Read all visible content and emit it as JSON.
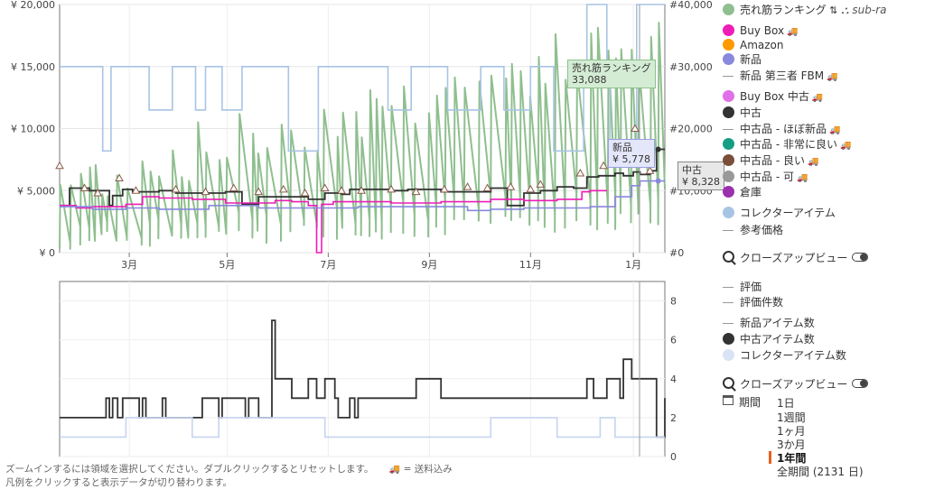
{
  "chart_data": [
    {
      "type": "line",
      "panel": "price",
      "y_left_ticks": [
        "¥ 0",
        "¥ 5,000",
        "¥ 10,000",
        "¥ 15,000",
        "¥ 20,000"
      ],
      "y_right_ticks": [
        "#0",
        "#10,000",
        "#20,000",
        "#30,000",
        "#40,000"
      ],
      "x_ticks": [
        "3月",
        "5月",
        "7月",
        "9月",
        "11月",
        "1月"
      ],
      "ylim_left": [
        0,
        20000
      ],
      "ylim_right": [
        0,
        40000
      ],
      "x_range_days": [
        0,
        365
      ],
      "x_tick_days": [
        42,
        101,
        162,
        223,
        284,
        346
      ],
      "series": [
        {
          "name": "コレクターアイテム",
          "color": "#a8c4e4",
          "step": true,
          "x": [
            0,
            24,
            26,
            31,
            52,
            54,
            59,
            66,
            68,
            80,
            82,
            88,
            96,
            98,
            108,
            110,
            118,
            136,
            138,
            154,
            156,
            162,
            174,
            176,
            188,
            196,
            198,
            210,
            212,
            220,
            232,
            234,
            244,
            254,
            256,
            266,
            268,
            276,
            284,
            286,
            296,
            298,
            306,
            316,
            318,
            326,
            330,
            332,
            340,
            346,
            348,
            365
          ],
          "y": [
            15000,
            15000,
            8200,
            15000,
            15000,
            11500,
            11500,
            11500,
            15000,
            15000,
            11500,
            15000,
            15000,
            11500,
            11500,
            15000,
            15000,
            15000,
            8200,
            8200,
            15000,
            15000,
            15000,
            15000,
            15000,
            15000,
            11500,
            11500,
            15000,
            15000,
            15000,
            11500,
            11500,
            15000,
            15000,
            15000,
            11500,
            11500,
            15000,
            15000,
            15000,
            8200,
            8200,
            15000,
            20000,
            20000,
            15000,
            8200,
            8200,
            8200,
            20000,
            20000
          ]
        },
        {
          "name": "中古",
          "color": "#333333",
          "step": true,
          "x": [
            0,
            6,
            18,
            30,
            32,
            38,
            44,
            60,
            70,
            80,
            100,
            110,
            120,
            140,
            150,
            160,
            170,
            175,
            190,
            200,
            210,
            230,
            245,
            260,
            270,
            280,
            290,
            300,
            310,
            318,
            325,
            335,
            340,
            346,
            350,
            356,
            360,
            365
          ],
          "y": [
            3800,
            5200,
            5000,
            3800,
            4600,
            5100,
            4900,
            5000,
            4800,
            4800,
            4900,
            3900,
            4500,
            4500,
            4300,
            4800,
            4700,
            5100,
            5100,
            5000,
            5100,
            4900,
            4900,
            5200,
            3800,
            4800,
            5000,
            5300,
            5200,
            6100,
            6200,
            6400,
            6200,
            6500,
            6300,
            6600,
            8328,
            8328
          ]
        },
        {
          "name": "Buy Box",
          "color": "#ee1db7",
          "step": true,
          "x": [
            0,
            10,
            20,
            40,
            50,
            60,
            80,
            100,
            130,
            140,
            150,
            155,
            158,
            165,
            180,
            200,
            230,
            260,
            270,
            280,
            300,
            315,
            320,
            330
          ],
          "y": [
            3800,
            3600,
            3700,
            3900,
            4500,
            4400,
            4300,
            4000,
            4200,
            4100,
            3800,
            0,
            3900,
            4100,
            4100,
            4000,
            4100,
            4300,
            4300,
            4200,
            4300,
            4900,
            5000,
            5000
          ]
        },
        {
          "name": "新品",
          "color": "#8888dd",
          "step": true,
          "x": [
            0,
            20,
            40,
            60,
            90,
            120,
            150,
            180,
            210,
            240,
            246,
            260,
            280,
            300,
            320,
            335,
            345,
            350,
            356,
            365
          ],
          "y": [
            3700,
            3500,
            3600,
            3500,
            3800,
            3600,
            3600,
            3700,
            3700,
            3700,
            3400,
            3500,
            3600,
            3600,
            3700,
            4500,
            5400,
            5778,
            5778,
            5778
          ]
        },
        {
          "name": "売れ筋ランキング",
          "color": "#8fbf8f",
          "axis": "right",
          "summary": {
            "range_min": 0,
            "range_max": 38000,
            "trend": "increasing toward year end"
          }
        }
      ],
      "reference_markers": {
        "name": "中古品 - 良い",
        "x": [
          0,
          15,
          23,
          36,
          46,
          70,
          88,
          105,
          120,
          135,
          148,
          160,
          170,
          182,
          200,
          215,
          232,
          246,
          258,
          272,
          284,
          290,
          314,
          328,
          347,
          356
        ],
        "y": [
          7000,
          5200,
          4800,
          6000,
          5000,
          5100,
          4900,
          5200,
          4900,
          5100,
          4800,
          5200,
          5000,
          5000,
          5100,
          4900,
          5100,
          5300,
          5200,
          5300,
          5100,
          5500,
          6400,
          7000,
          10000,
          6600
        ]
      },
      "tooltips": [
        {
          "label": "売れ筋ランキング",
          "value": "33,088",
          "bg": "#d4ecd4",
          "border": "#8fbf8f"
        },
        {
          "label": "新品",
          "value": "¥ 5,778",
          "bg": "#e4e6fa",
          "border": "#9aa0e0"
        },
        {
          "label": "中古",
          "value": "¥ 8,328",
          "bg": "#e8e8e8",
          "border": "#888888"
        }
      ]
    },
    {
      "type": "line",
      "panel": "offer_count",
      "y_ticks": [
        "0",
        "2",
        "4",
        "6",
        "8"
      ],
      "ylim": [
        0,
        9
      ],
      "series": [
        {
          "name": "中古アイテム数",
          "color": "#333333",
          "step": true,
          "x": [
            0,
            28,
            30,
            32,
            35,
            38,
            48,
            50,
            52,
            62,
            64,
            80,
            86,
            96,
            98,
            112,
            114,
            120,
            128,
            130,
            140,
            150,
            155,
            160,
            166,
            168,
            175,
            178,
            180,
            190,
            200,
            215,
            230,
            245,
            260,
            270,
            290,
            300,
            318,
            322,
            330,
            338,
            340,
            345,
            356,
            360,
            365
          ],
          "y": [
            2,
            3,
            2,
            3,
            2,
            3,
            2,
            3,
            2,
            3,
            2,
            2,
            3,
            2,
            3,
            2,
            3,
            2,
            7,
            4,
            3,
            4,
            3,
            4,
            3,
            2,
            3,
            2,
            3,
            3,
            3,
            4,
            3,
            3,
            3,
            3,
            3,
            3,
            4,
            3,
            4,
            3,
            5,
            4,
            4,
            1,
            3
          ]
        },
        {
          "name": "コレクターアイテム数",
          "color": "#c6d4ef",
          "step": true,
          "x": [
            0,
            40,
            80,
            96,
            120,
            160,
            200,
            240,
            260,
            280,
            300,
            326,
            335,
            350,
            365
          ],
          "y": [
            1,
            2,
            1,
            2,
            2,
            1,
            1,
            1,
            2,
            2,
            1,
            2,
            1,
            1,
            1
          ]
        }
      ]
    }
  ],
  "legend": {
    "top": [
      {
        "label": "売れ筋ランキング",
        "type": "dot",
        "color": "#8fbf8f",
        "extra": "sub-ra"
      },
      {
        "label": "Buy Box",
        "type": "dot",
        "color": "#ee1db7",
        "truck": true
      },
      {
        "label": "Amazon",
        "type": "dot",
        "color": "#ff9900"
      },
      {
        "label": "新品",
        "type": "dot",
        "color": "#8888dd"
      },
      {
        "label": "新品 第三者 FBM",
        "type": "dash",
        "truck": true
      },
      {
        "label": "Buy Box 中古",
        "type": "dot",
        "color": "#e070e8",
        "truck": true
      },
      {
        "label": "中古",
        "type": "dot",
        "color": "#333333"
      },
      {
        "label": "中古品 - ほぼ新品",
        "type": "dash",
        "truck": true
      },
      {
        "label": "中古品 - 非常に良い",
        "type": "dot",
        "color": "#149e84",
        "truck": true
      },
      {
        "label": "中古品 - 良い",
        "type": "dot",
        "color": "#7a4e3a",
        "truck": true
      },
      {
        "label": "中古品 - 可",
        "type": "dot",
        "color": "#999999",
        "truck": true
      },
      {
        "label": "倉庫",
        "type": "dot",
        "color": "#9b2fae"
      },
      {
        "label": "コレクターアイテム",
        "type": "dot",
        "color": "#a8c4e4"
      },
      {
        "label": "参考価格",
        "type": "dash"
      }
    ],
    "closeup": "クローズアップビュー",
    "bottom": [
      {
        "label": "評価",
        "type": "dash"
      },
      {
        "label": "評価件数",
        "type": "dash"
      },
      {
        "label": "新品アイテム数",
        "type": "dash"
      },
      {
        "label": "中古アイテム数",
        "type": "dot",
        "color": "#333333"
      },
      {
        "label": "コレクターアイテム数",
        "type": "dot",
        "color": "#d8e4f6"
      }
    ],
    "period_label": "期間",
    "ranges": [
      "1日",
      "1週間",
      "1ヶ月",
      "3か月",
      "1年間",
      "全期間 (2131 日)"
    ],
    "selected_range": "1年間"
  },
  "footnote": "ズームインするには領域を選択してください。ダブルクリックするとリセットします。",
  "footnote_truck": "= 送料込み",
  "footnote2": "凡例をクリックすると表示データが切り替わります。"
}
